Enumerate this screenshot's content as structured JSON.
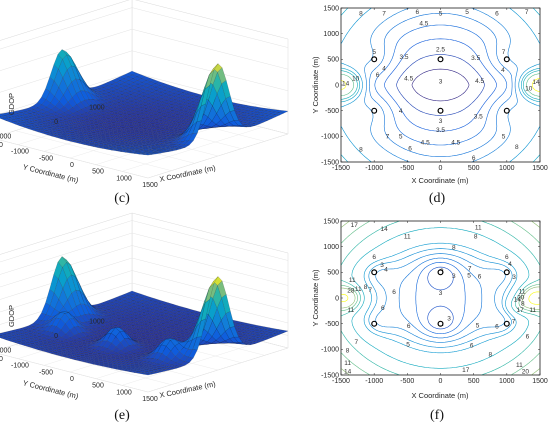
{
  "figure": {
    "panels": [
      {
        "label": "(c)",
        "kind": "surface",
        "zlabel": "GDOP",
        "xlabel": "X Coordinate (m)",
        "ylabel": "Y Coordinate (m)",
        "zticks": [
          "5",
          "10",
          "15",
          "20"
        ],
        "xticks": [
          "-1500",
          "-1000",
          "-500",
          "0",
          "500",
          "1000",
          "1500"
        ],
        "yticks": [
          "-1000",
          "0",
          "1000"
        ]
      },
      {
        "label": "(d)",
        "kind": "contour",
        "xlabel": "X Coordinate (m)",
        "ylabel": "Y Coordinate (m)",
        "xticks": [
          "-1500",
          "-1000",
          "-500",
          "0",
          "500",
          "1000",
          "1500"
        ],
        "yticks": [
          "-1500",
          "-1000",
          "-500",
          "0",
          "500",
          "1000",
          "1500"
        ]
      },
      {
        "label": "(e)",
        "kind": "surface",
        "zlabel": "GDOP",
        "xlabel": "X Coordinate (m)",
        "ylabel": "Y Coordinate (m)",
        "zticks": [
          "5",
          "10",
          "15",
          "20",
          "25",
          "30",
          "35"
        ],
        "xticks": [
          "-1500",
          "-1000",
          "-500",
          "0",
          "500",
          "1000",
          "1500"
        ],
        "yticks": [
          "-1000",
          "0",
          "1000"
        ]
      },
      {
        "label": "(f)",
        "kind": "contour",
        "xlabel": "X Coordinate (m)",
        "ylabel": "Y Coordinate (m)",
        "xticks": [
          "-1500",
          "-1000",
          "-500",
          "0",
          "500",
          "1000",
          "1500"
        ],
        "yticks": [
          "-1500",
          "-1000",
          "-500",
          "0",
          "500",
          "1000",
          "1500"
        ]
      }
    ]
  },
  "chart_data": [
    {
      "type": "surface",
      "panel": "(c)",
      "zlabel": "GDOP",
      "xlabel": "X Coordinate (m)",
      "ylabel": "Y Coordinate (m)",
      "xlim": [
        -1500,
        1500
      ],
      "ylim": [
        -1500,
        1500
      ],
      "zlim": [
        0,
        22
      ],
      "grid": true,
      "peaks": [
        {
          "x": -1500,
          "y": 0,
          "z": 14
        },
        {
          "x": 1500,
          "y": 0,
          "z": 20
        }
      ],
      "floor_level": 2.5
    },
    {
      "type": "contour",
      "panel": "(d)",
      "xlabel": "X Coordinate (m)",
      "ylabel": "Y Coordinate (m)",
      "xlim": [
        -1500,
        1500
      ],
      "ylim": [
        -1500,
        1500
      ],
      "anchors": [
        {
          "x": -1000,
          "y": 500
        },
        {
          "x": 0,
          "y": 500
        },
        {
          "x": 1000,
          "y": 500
        },
        {
          "x": -1000,
          "y": -500
        },
        {
          "x": 0,
          "y": -500
        },
        {
          "x": 1000,
          "y": -500
        }
      ],
      "contour_labels": [
        {
          "text": "8",
          "x": -1200,
          "y": 1400
        },
        {
          "text": "7",
          "x": -850,
          "y": 1400
        },
        {
          "text": "6",
          "x": -350,
          "y": 1430
        },
        {
          "text": "5",
          "x": 0,
          "y": 1400
        },
        {
          "text": "4.5",
          "x": -250,
          "y": 1200
        },
        {
          "text": "5",
          "x": 400,
          "y": 1430
        },
        {
          "text": "6",
          "x": 850,
          "y": 1400
        },
        {
          "text": "7",
          "x": 1300,
          "y": 1430
        },
        {
          "text": "2.5",
          "x": 0,
          "y": 700
        },
        {
          "text": "3.5",
          "x": -550,
          "y": 550
        },
        {
          "text": "3.5",
          "x": 530,
          "y": 530
        },
        {
          "text": "4",
          "x": -850,
          "y": 330
        },
        {
          "text": "5",
          "x": -1000,
          "y": 650
        },
        {
          "text": "6",
          "x": -950,
          "y": 200
        },
        {
          "text": "7",
          "x": 950,
          "y": 650
        },
        {
          "text": "4",
          "x": 940,
          "y": 300
        },
        {
          "text": "4.5",
          "x": -480,
          "y": 130
        },
        {
          "text": "4.5",
          "x": 590,
          "y": 80
        },
        {
          "text": "3",
          "x": 0,
          "y": 70
        },
        {
          "text": "10",
          "x": -1280,
          "y": 130
        },
        {
          "text": "14",
          "x": -1430,
          "y": 30
        },
        {
          "text": "10",
          "x": 1330,
          "y": -60
        },
        {
          "text": "14",
          "x": 1440,
          "y": 60
        },
        {
          "text": "4",
          "x": -600,
          "y": -500
        },
        {
          "text": "3",
          "x": 0,
          "y": -700
        },
        {
          "text": "3.5",
          "x": 570,
          "y": -610
        },
        {
          "text": "3.5",
          "x": 0,
          "y": -870
        },
        {
          "text": "5",
          "x": -600,
          "y": -1000
        },
        {
          "text": "4.5",
          "x": -230,
          "y": -1120
        },
        {
          "text": "4.5",
          "x": 230,
          "y": -1120
        },
        {
          "text": "5",
          "x": 950,
          "y": -1000
        },
        {
          "text": "7",
          "x": -800,
          "y": -1000
        },
        {
          "text": "8",
          "x": -1200,
          "y": -1250
        },
        {
          "text": "6",
          "x": -460,
          "y": -1230
        },
        {
          "text": "6",
          "x": 500,
          "y": -1420
        },
        {
          "text": "8",
          "x": 1150,
          "y": -1200
        }
      ]
    },
    {
      "type": "surface",
      "panel": "(e)",
      "zlabel": "GDOP",
      "xlabel": "X Coordinate (m)",
      "ylabel": "Y Coordinate (m)",
      "xlim": [
        -1500,
        1500
      ],
      "ylim": [
        -1500,
        1500
      ],
      "zlim": [
        0,
        38
      ],
      "grid": true,
      "peaks": [
        {
          "x": -1500,
          "y": 0,
          "z": 28
        },
        {
          "x": 1500,
          "y": 0,
          "z": 36
        },
        {
          "x": -1000,
          "y": -500,
          "z": 12
        },
        {
          "x": 0,
          "y": -500,
          "z": 12
        },
        {
          "x": 1000,
          "y": -500,
          "z": 12
        }
      ],
      "floor_level": 4
    },
    {
      "type": "contour",
      "panel": "(f)",
      "xlabel": "X Coordinate (m)",
      "ylabel": "Y Coordinate (m)",
      "xlim": [
        -1500,
        1500
      ],
      "ylim": [
        -1500,
        1500
      ],
      "anchors": [
        {
          "x": -1000,
          "y": 500
        },
        {
          "x": 0,
          "y": 500
        },
        {
          "x": 1000,
          "y": 500
        },
        {
          "x": -1000,
          "y": -500
        },
        {
          "x": 0,
          "y": -500
        },
        {
          "x": 1000,
          "y": -500
        }
      ],
      "contour_labels": [
        {
          "text": "17",
          "x": -1300,
          "y": 1430
        },
        {
          "text": "14",
          "x": -850,
          "y": 1350
        },
        {
          "text": "11",
          "x": -500,
          "y": 1200
        },
        {
          "text": "11",
          "x": 570,
          "y": 1380
        },
        {
          "text": "8",
          "x": 530,
          "y": 1200
        },
        {
          "text": "8",
          "x": 200,
          "y": 990
        },
        {
          "text": "6",
          "x": -1000,
          "y": 800
        },
        {
          "text": "6",
          "x": 1000,
          "y": 800
        },
        {
          "text": "3",
          "x": -880,
          "y": 650
        },
        {
          "text": "4",
          "x": -820,
          "y": 560
        },
        {
          "text": "2",
          "x": 20,
          "y": 530
        },
        {
          "text": "3",
          "x": 200,
          "y": 430
        },
        {
          "text": "5",
          "x": 430,
          "y": 440
        },
        {
          "text": "6",
          "x": 590,
          "y": 420
        },
        {
          "text": "7",
          "x": 440,
          "y": 580
        },
        {
          "text": "4",
          "x": 1050,
          "y": 670
        },
        {
          "text": "3",
          "x": 1110,
          "y": 410
        },
        {
          "text": "11",
          "x": -1330,
          "y": 350
        },
        {
          "text": "28",
          "x": -1350,
          "y": 150
        },
        {
          "text": "11",
          "x": -1240,
          "y": 180
        },
        {
          "text": "8",
          "x": -1130,
          "y": 220
        },
        {
          "text": "7",
          "x": -1060,
          "y": 160
        },
        {
          "text": "6",
          "x": -700,
          "y": 120
        },
        {
          "text": "3",
          "x": 0,
          "y": 100
        },
        {
          "text": "20",
          "x": 1210,
          "y": 10
        },
        {
          "text": "11",
          "x": 1230,
          "y": 130
        },
        {
          "text": "14",
          "x": 1160,
          "y": -30
        },
        {
          "text": "8",
          "x": 1240,
          "y": -100
        },
        {
          "text": "17",
          "x": 1200,
          "y": -230
        },
        {
          "text": "11",
          "x": 1390,
          "y": -230
        },
        {
          "text": "11",
          "x": -1350,
          "y": -230
        },
        {
          "text": "6",
          "x": -870,
          "y": -190
        },
        {
          "text": "2",
          "x": 20,
          "y": -500
        },
        {
          "text": "3",
          "x": 130,
          "y": -400
        },
        {
          "text": "6",
          "x": -480,
          "y": -540
        },
        {
          "text": "5",
          "x": 560,
          "y": -530
        },
        {
          "text": "6",
          "x": 850,
          "y": -550
        },
        {
          "text": "7",
          "x": 1100,
          "y": -450
        },
        {
          "text": "7",
          "x": -1270,
          "y": -850
        },
        {
          "text": "6",
          "x": 1310,
          "y": -750
        },
        {
          "text": "5",
          "x": -490,
          "y": -900
        },
        {
          "text": "6",
          "x": 470,
          "y": -920
        },
        {
          "text": "8",
          "x": -1400,
          "y": -1020
        },
        {
          "text": "8",
          "x": 750,
          "y": -1100
        },
        {
          "text": "11",
          "x": -1400,
          "y": -1260
        },
        {
          "text": "11",
          "x": 1190,
          "y": -1300
        },
        {
          "text": "14",
          "x": -1400,
          "y": -1430
        },
        {
          "text": "17",
          "x": 380,
          "y": -1400
        },
        {
          "text": "20",
          "x": 1280,
          "y": -1430
        }
      ]
    }
  ]
}
